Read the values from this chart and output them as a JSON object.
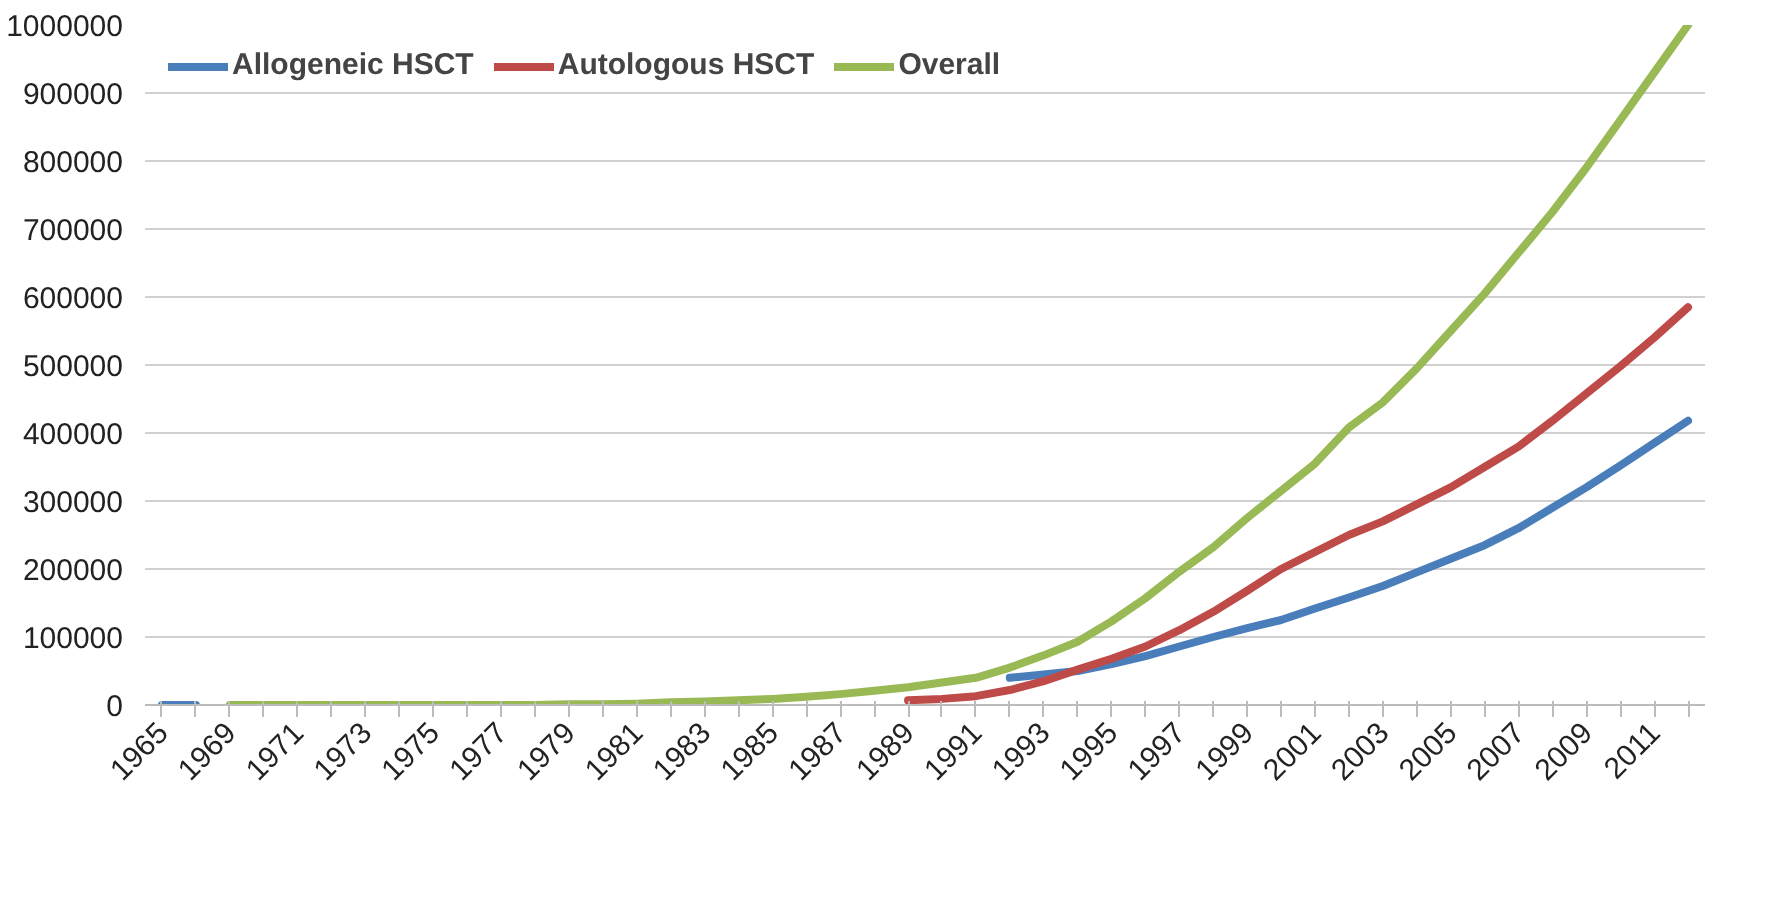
{
  "chart_data": {
    "type": "line",
    "categories": [
      "1965",
      null,
      "1969",
      null,
      "1971",
      null,
      "1973",
      null,
      "1975",
      null,
      "1977",
      null,
      "1979",
      null,
      "1981",
      null,
      "1983",
      null,
      "1985",
      null,
      "1987",
      null,
      "1989",
      null,
      "1991",
      null,
      "1993",
      null,
      "1995",
      null,
      "1997",
      null,
      "1999",
      null,
      "2001",
      null,
      "2003",
      null,
      "2005",
      null,
      "2007",
      null,
      "2009",
      null,
      "2011",
      null
    ],
    "series": [
      {
        "name": "Allogeneic HSCT",
        "color": "#4a7ebb",
        "values": [
          0,
          0,
          null,
          null,
          null,
          null,
          null,
          null,
          null,
          null,
          null,
          null,
          null,
          null,
          null,
          null,
          null,
          null,
          null,
          null,
          null,
          null,
          null,
          null,
          null,
          40000,
          45000,
          50000,
          60000,
          72000,
          86000,
          100000,
          113000,
          125000,
          142000,
          158000,
          175000,
          195000,
          215000,
          235000,
          260000,
          290000,
          320000,
          352000,
          385000,
          418000
        ]
      },
      {
        "name": "Autologous HSCT",
        "color": "#be4b48",
        "values": [
          null,
          null,
          null,
          null,
          null,
          null,
          null,
          null,
          null,
          null,
          null,
          null,
          null,
          null,
          null,
          null,
          null,
          null,
          null,
          null,
          null,
          null,
          7000,
          9000,
          13000,
          22000,
          35000,
          52000,
          68000,
          86000,
          110000,
          137000,
          168000,
          200000,
          225000,
          250000,
          270000,
          295000,
          320000,
          350000,
          380000,
          418000,
          458000,
          498000,
          540000,
          585000
        ]
      },
      {
        "name": "Overall",
        "color": "#98b954",
        "values": [
          null,
          null,
          0,
          0,
          0,
          0,
          0,
          0,
          0,
          0,
          0,
          0,
          1000,
          1000,
          2000,
          4000,
          5000,
          7000,
          9000,
          12000,
          16000,
          21000,
          26000,
          33000,
          40000,
          55000,
          73000,
          93000,
          123000,
          157000,
          196000,
          232000,
          275000,
          315000,
          355000,
          408000,
          445000,
          495000,
          550000,
          605000,
          665000,
          725000,
          790000,
          860000,
          930000,
          1000000
        ]
      }
    ],
    "ylim": [
      0,
      1000000
    ],
    "yticks": [
      0,
      100000,
      200000,
      300000,
      400000,
      500000,
      600000,
      700000,
      800000,
      900000,
      1000000
    ],
    "grid": "y",
    "legend": "top left",
    "line_style": "solid",
    "marker": "none"
  }
}
